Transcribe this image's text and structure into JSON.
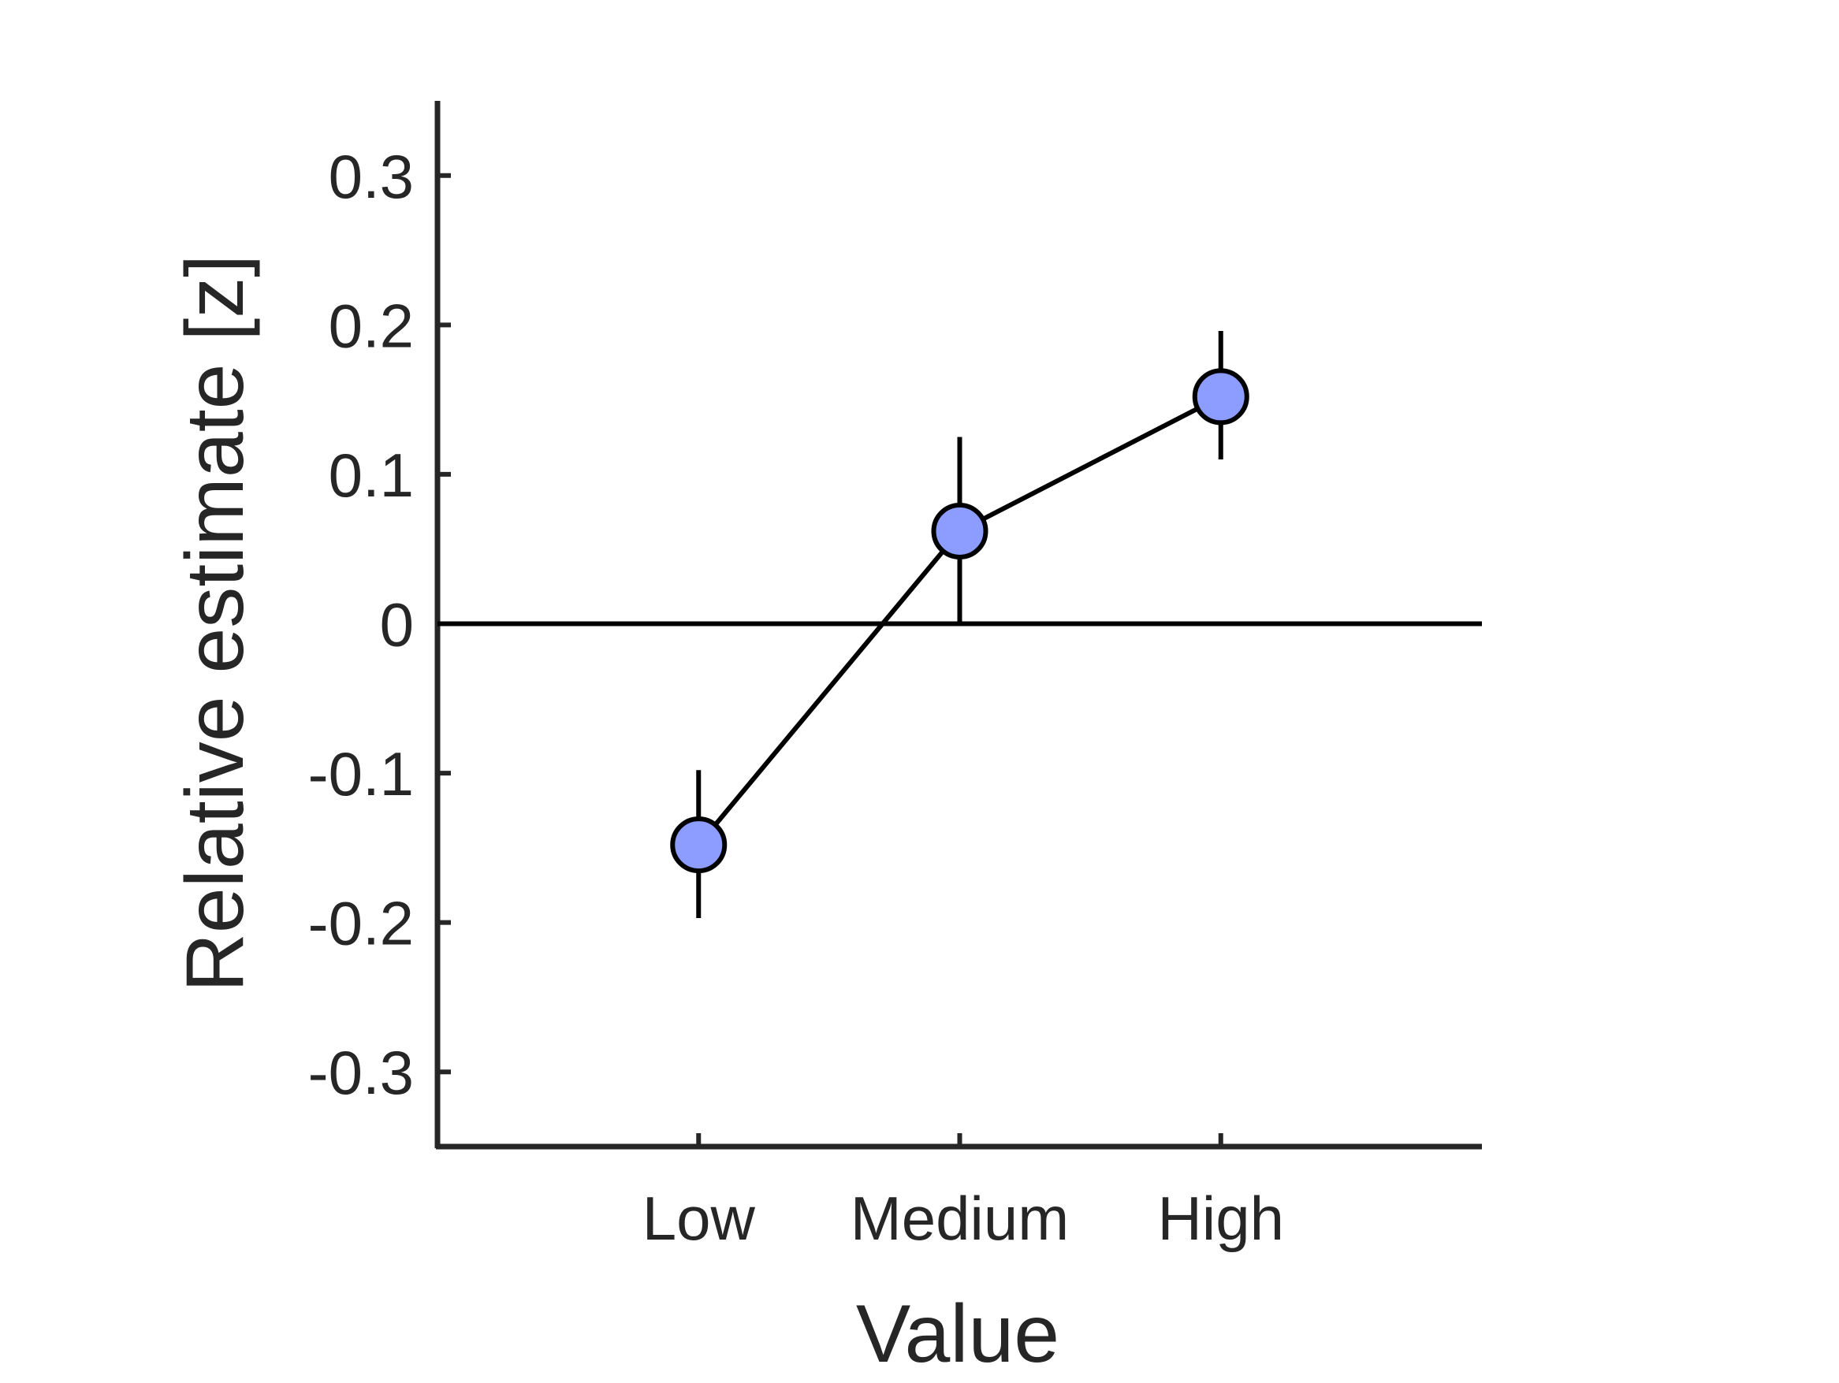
{
  "chart_data": {
    "type": "line",
    "title": "",
    "xlabel": "Value",
    "ylabel": "Relative estimate [z]",
    "categories": [
      "Low",
      "Medium",
      "High"
    ],
    "xlim": [
      0,
      4
    ],
    "ylim": [
      -0.35,
      0.35
    ],
    "yticks": [
      -0.3,
      -0.2,
      -0.1,
      0,
      0.1,
      0.2,
      0.3
    ],
    "ytick_labels": [
      "-0.3",
      "-0.2",
      "-0.1",
      "0",
      "0.1",
      "0.2",
      "0.3"
    ],
    "reference_line": 0,
    "grid": false,
    "legend": "none",
    "series": [
      {
        "values": [
          -0.148,
          0.062,
          0.152
        ],
        "error_low": [
          -0.197,
          0.0,
          0.11
        ],
        "error_high": [
          -0.098,
          0.125,
          0.196
        ],
        "marker_color": "#8c9cff",
        "line_color": "#000000"
      }
    ],
    "colors": {
      "axis": "#262626",
      "text": "#262626",
      "marker_fill": "#8c9cff",
      "marker_edge": "#000000"
    }
  }
}
